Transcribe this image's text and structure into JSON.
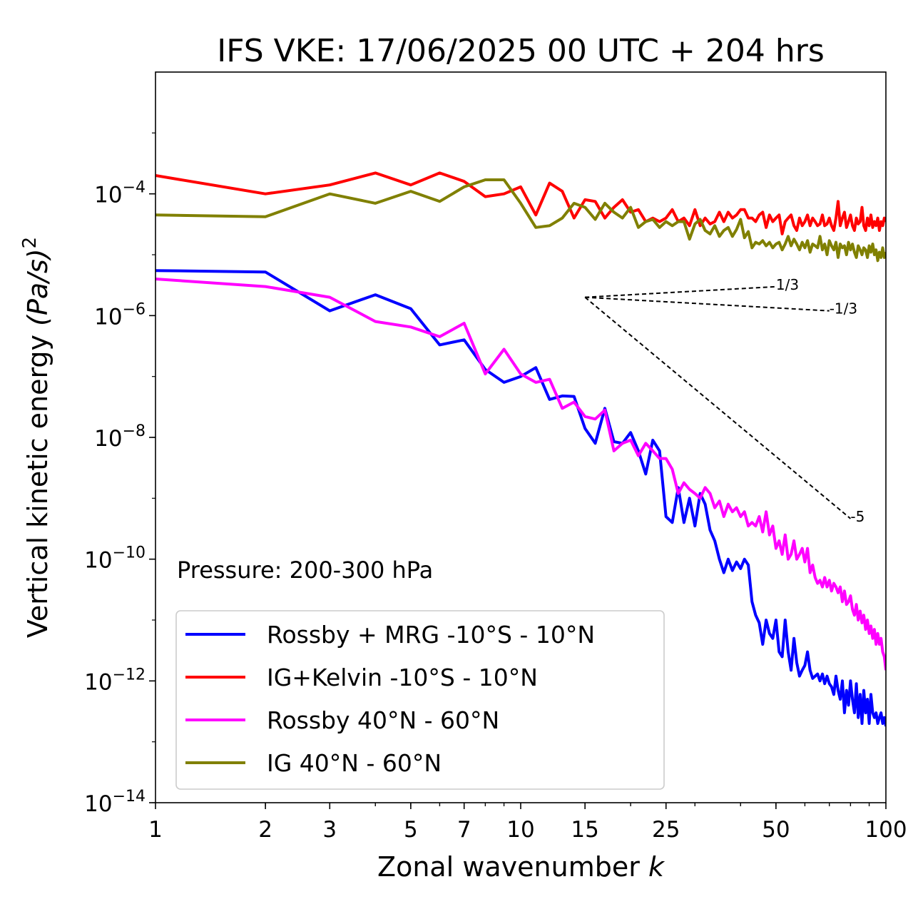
{
  "chart_data": {
    "type": "line",
    "title": "IFS VKE: 17/06/2025 00 UTC + 204 hrs",
    "xlabel": "Zonal wavenumber",
    "xlabel_var": "k",
    "ylabel_text": "Vertical kinetic energy",
    "ylabel_unit": "(Pa/s)",
    "ylabel_exp": "2",
    "x_scale": "log",
    "y_scale": "log",
    "xlim": [
      1,
      100
    ],
    "ylim": [
      1e-14,
      0.01
    ],
    "x_ticks": [
      1,
      2,
      3,
      5,
      7,
      10,
      15,
      25,
      50,
      100
    ],
    "x_tick_labels": [
      "1",
      "2",
      "3",
      "5",
      "7",
      "10",
      "15",
      "25",
      "50",
      "100"
    ],
    "y_ticks": [
      {
        "value": 0.0001,
        "base": "10",
        "exp": "−4"
      },
      {
        "value": 1e-06,
        "base": "10",
        "exp": "−6"
      },
      {
        "value": 1e-08,
        "base": "10",
        "exp": "−8"
      },
      {
        "value": 1e-10,
        "base": "10",
        "exp": "−10"
      },
      {
        "value": 1e-12,
        "base": "10",
        "exp": "−12"
      },
      {
        "value": 1e-14,
        "base": "10",
        "exp": "−14"
      }
    ],
    "annotation": "Pressure: 200-300 hPa",
    "legend_position": "lower left",
    "grid": false,
    "reference_slopes": [
      {
        "label": "1/3",
        "slope": 0.3333,
        "x_start": 15,
        "y_start": 2e-06,
        "x_end": 50
      },
      {
        "label": "-1/3",
        "slope": -0.3333,
        "x_start": 15,
        "y_start": 2e-06,
        "x_end": 70
      },
      {
        "label": "-5",
        "slope": -5,
        "x_start": 15,
        "y_start": 2e-06,
        "x_end": 80
      }
    ],
    "series": [
      {
        "name": "Rossby + MRG -10°S - 10°N",
        "color": "#0000ff",
        "x": [
          1,
          2,
          3,
          4,
          5,
          6,
          7,
          8,
          9,
          10,
          11,
          12,
          13,
          14,
          15,
          16,
          17,
          18,
          19,
          20,
          21,
          22,
          23,
          24,
          25,
          26,
          27,
          28,
          29,
          30,
          31,
          32,
          33,
          34,
          35,
          36,
          37,
          38,
          39,
          40,
          41,
          42,
          43,
          44,
          45,
          46,
          47,
          48,
          49,
          50,
          51,
          52,
          53,
          54,
          55,
          56,
          57,
          58,
          59,
          60,
          61,
          62,
          63,
          64,
          65,
          66,
          67,
          68,
          69,
          70,
          71,
          72,
          73,
          74,
          75,
          76,
          77,
          78,
          79,
          80,
          81,
          82,
          83,
          84,
          85,
          86,
          87,
          88,
          89,
          90,
          91,
          92,
          93,
          94,
          95,
          96,
          97,
          98,
          99,
          100
        ],
        "y": [
          5.5e-06,
          5.2e-06,
          1.2e-06,
          2.2e-06,
          1.3e-06,
          3.3e-07,
          4e-07,
          1.3e-07,
          8e-08,
          1e-07,
          1.4e-07,
          4.2e-08,
          4.8e-08,
          4.7e-08,
          1.4e-08,
          8e-09,
          3e-08,
          8.5e-09,
          8e-09,
          1.2e-08,
          6e-09,
          2.5e-09,
          9e-09,
          6e-09,
          5e-10,
          4e-10,
          1.5e-09,
          4e-10,
          1e-09,
          3.5e-10,
          1.2e-09,
          8e-10,
          3e-10,
          2e-10,
          1e-10,
          6e-11,
          1e-10,
          6.5e-11,
          9e-11,
          7e-11,
          1e-10,
          8e-11,
          2e-11,
          1.2e-11,
          9e-12,
          4e-12,
          1e-11,
          6e-12,
          5e-12,
          1e-11,
          3e-12,
          2.5e-12,
          1e-11,
          3e-12,
          1.5e-12,
          5e-12,
          2e-12,
          1.2e-12,
          1.5e-12,
          1.8e-12,
          3e-12,
          1.5e-12,
          1.1e-12,
          1.2e-12,
          1.3e-12,
          1e-12,
          1.3e-12,
          9e-13,
          1.2e-12,
          9e-13,
          8e-13,
          6e-13,
          1.2e-12,
          7e-13,
          5e-13,
          1e-12,
          3e-13,
          7e-13,
          4e-13,
          1e-12,
          5e-13,
          3e-13,
          9e-13,
          2.5e-13,
          6e-13,
          2e-13,
          7e-13,
          3e-13,
          5e-13,
          2e-13,
          6e-13,
          3e-13,
          2.5e-13,
          3e-13,
          2e-13,
          2.5e-13,
          3e-13,
          2e-13,
          2.5e-13,
          1.8e-13
        ]
      },
      {
        "name": "IG+Kelvin -10°S - 10°N",
        "color": "#ff0000",
        "x": [
          1,
          2,
          3,
          4,
          5,
          6,
          7,
          8,
          9,
          10,
          11,
          12,
          13,
          14,
          15,
          16,
          17,
          18,
          19,
          20,
          21,
          22,
          23,
          24,
          25,
          26,
          27,
          28,
          29,
          30,
          31,
          32,
          33,
          34,
          35,
          36,
          37,
          38,
          39,
          40,
          41,
          42,
          43,
          44,
          45,
          46,
          47,
          48,
          49,
          50,
          51,
          52,
          53,
          54,
          55,
          56,
          57,
          58,
          59,
          60,
          61,
          62,
          63,
          64,
          65,
          66,
          67,
          68,
          69,
          70,
          71,
          72,
          73,
          74,
          75,
          76,
          77,
          78,
          79,
          80,
          81,
          82,
          83,
          84,
          85,
          86,
          87,
          88,
          89,
          90,
          91,
          92,
          93,
          94,
          95,
          96,
          97,
          98,
          99,
          100
        ],
        "y": [
          0.0002,
          0.0001,
          0.00014,
          0.00022,
          0.00014,
          0.00022,
          0.00016,
          9e-05,
          0.0001,
          0.00013,
          4.5e-05,
          0.00015,
          0.00011,
          4e-05,
          8e-05,
          7.5e-05,
          4e-05,
          6e-05,
          8e-05,
          5e-05,
          5.5e-05,
          3.5e-05,
          4e-05,
          3.5e-05,
          4e-05,
          5.5e-05,
          3.5e-05,
          4e-05,
          3e-05,
          5.5e-05,
          3e-05,
          4e-05,
          3.2e-05,
          3.5e-05,
          5e-05,
          3.5e-05,
          5e-05,
          4e-05,
          4.5e-05,
          5.5e-05,
          5.5e-05,
          4e-05,
          4e-05,
          3.5e-05,
          4.5e-05,
          5e-05,
          2.8e-05,
          4.5e-05,
          3.5e-05,
          4e-05,
          4.5e-05,
          2.2e-05,
          3.5e-05,
          4e-05,
          4.5e-05,
          3e-05,
          2.5e-05,
          4e-05,
          3e-05,
          3.5e-05,
          4.5e-05,
          3e-05,
          4e-05,
          3.5e-05,
          3e-05,
          3.2e-05,
          4.5e-05,
          3e-05,
          3.2e-05,
          4e-05,
          3e-05,
          2.5e-05,
          4e-05,
          7.5e-05,
          3e-05,
          4e-05,
          5e-05,
          2.8e-05,
          3.5e-05,
          4.5e-05,
          3e-05,
          2.5e-05,
          4e-05,
          3.2e-05,
          3.5e-05,
          6e-05,
          3e-05,
          2.5e-05,
          4e-05,
          3e-05,
          4.5e-05,
          2.8e-05,
          3.5e-05,
          3e-05,
          4e-05,
          2.5e-05,
          3.5e-05,
          3e-05,
          4e-05,
          3.5e-05
        ]
      },
      {
        "name": "Rossby 40°N - 60°N",
        "color": "#ff00ff",
        "x": [
          1,
          2,
          3,
          4,
          5,
          6,
          7,
          8,
          9,
          10,
          11,
          12,
          13,
          14,
          15,
          16,
          17,
          18,
          19,
          20,
          21,
          22,
          23,
          24,
          25,
          26,
          27,
          28,
          29,
          30,
          31,
          32,
          33,
          34,
          35,
          36,
          37,
          38,
          39,
          40,
          41,
          42,
          43,
          44,
          45,
          46,
          47,
          48,
          49,
          50,
          51,
          52,
          53,
          54,
          55,
          56,
          57,
          58,
          59,
          60,
          61,
          62,
          63,
          64,
          65,
          66,
          67,
          68,
          69,
          70,
          71,
          72,
          73,
          74,
          75,
          76,
          77,
          78,
          79,
          80,
          81,
          82,
          83,
          84,
          85,
          86,
          87,
          88,
          89,
          90,
          91,
          92,
          93,
          94,
          95,
          96,
          97,
          98,
          99,
          100
        ],
        "y": [
          4e-06,
          3e-06,
          2e-06,
          8e-07,
          6.5e-07,
          4.5e-07,
          7.5e-07,
          1.1e-07,
          2.8e-07,
          1.1e-07,
          8e-08,
          9e-08,
          3e-08,
          3.8e-08,
          2.2e-08,
          2e-08,
          2.8e-08,
          6e-09,
          8e-09,
          9e-09,
          5e-09,
          8e-09,
          6e-09,
          4.5e-09,
          4.5e-09,
          3e-09,
          1.2e-09,
          1.8e-09,
          1.4e-09,
          1.2e-09,
          1e-09,
          1.5e-09,
          1.2e-09,
          7e-10,
          9e-10,
          5e-10,
          8e-10,
          6e-10,
          7e-10,
          5e-10,
          6e-10,
          3.5e-10,
          4e-10,
          3.5e-10,
          5e-10,
          2.8e-10,
          6e-10,
          2.5e-10,
          3.5e-10,
          1.5e-10,
          2e-10,
          1.2e-10,
          2.5e-10,
          1e-10,
          1.2e-10,
          2e-10,
          1e-10,
          1.2e-10,
          1.5e-10,
          9e-11,
          1.5e-10,
          6e-11,
          8e-11,
          5e-11,
          4e-11,
          4.5e-11,
          3.5e-11,
          5e-11,
          3.5e-11,
          4.5e-11,
          3e-11,
          4e-11,
          3.5e-11,
          2.8e-11,
          3.5e-11,
          2e-11,
          3e-11,
          1.8e-11,
          2e-11,
          2.5e-11,
          1.5e-11,
          1.2e-11,
          1.8e-11,
          1e-11,
          1.4e-11,
          9e-12,
          1.2e-11,
          7e-12,
          1e-11,
          6e-12,
          8e-12,
          5e-12,
          7e-12,
          4e-12,
          6e-12,
          4e-12,
          5e-12,
          3e-12,
          2.5e-12,
          1.5e-12
        ]
      },
      {
        "name": "IG 40°N - 60°N",
        "color": "#808000",
        "x": [
          1,
          2,
          3,
          4,
          5,
          6,
          7,
          8,
          9,
          10,
          11,
          12,
          13,
          14,
          15,
          16,
          17,
          18,
          19,
          20,
          21,
          22,
          23,
          24,
          25,
          26,
          27,
          28,
          29,
          30,
          31,
          32,
          33,
          34,
          35,
          36,
          37,
          38,
          39,
          40,
          41,
          42,
          43,
          44,
          45,
          46,
          47,
          48,
          49,
          50,
          51,
          52,
          53,
          54,
          55,
          56,
          57,
          58,
          59,
          60,
          61,
          62,
          63,
          64,
          65,
          66,
          67,
          68,
          69,
          70,
          71,
          72,
          73,
          74,
          75,
          76,
          77,
          78,
          79,
          80,
          81,
          82,
          83,
          84,
          85,
          86,
          87,
          88,
          89,
          90,
          91,
          92,
          93,
          94,
          95,
          96,
          97,
          98,
          99,
          100
        ],
        "y": [
          4.5e-05,
          4.2e-05,
          0.0001,
          7e-05,
          0.00011,
          7.5e-05,
          0.00013,
          0.00017,
          0.00017,
          7e-05,
          2.8e-05,
          3e-05,
          4e-05,
          7e-05,
          6e-05,
          3.8e-05,
          7e-05,
          5e-05,
          4e-05,
          6e-05,
          2.8e-05,
          3.5e-05,
          3.8e-05,
          2.8e-05,
          3.5e-05,
          3e-05,
          3.5e-05,
          3.5e-05,
          1.8e-05,
          3.2e-05,
          3.8e-05,
          2.5e-05,
          2.2e-05,
          3e-05,
          2e-05,
          2.5e-05,
          2.8e-05,
          2e-05,
          2.6e-05,
          3.8e-05,
          1.9e-05,
          2.4e-05,
          1.3e-05,
          1.6e-05,
          1.5e-05,
          1.7e-05,
          1.4e-05,
          1.6e-05,
          1.3e-05,
          1.5e-05,
          1.6e-05,
          1.2e-05,
          1.5e-05,
          2e-05,
          1.4e-05,
          1.8e-05,
          1.5e-05,
          1.2e-05,
          1.6e-05,
          1.3e-05,
          1.7e-05,
          1.1e-05,
          1.5e-05,
          1.4e-05,
          1.3e-05,
          2e-05,
          1.2e-05,
          1.5e-05,
          1e-05,
          1.7e-05,
          1.4e-05,
          1.2e-05,
          1.6e-05,
          9e-06,
          1.5e-05,
          1.3e-05,
          1.4e-05,
          1e-05,
          1.6e-05,
          1.2e-05,
          1.5e-05,
          1.1e-05,
          9e-06,
          1.4e-05,
          1.2e-05,
          1e-05,
          1.3e-05,
          1.2e-05,
          9e-06,
          1.4e-05,
          1.1e-05,
          1.5e-05,
          1e-05,
          1.2e-05,
          8e-06,
          1.1e-05,
          9e-06,
          1.3e-05,
          9e-06,
          1.1e-05
        ]
      }
    ]
  }
}
